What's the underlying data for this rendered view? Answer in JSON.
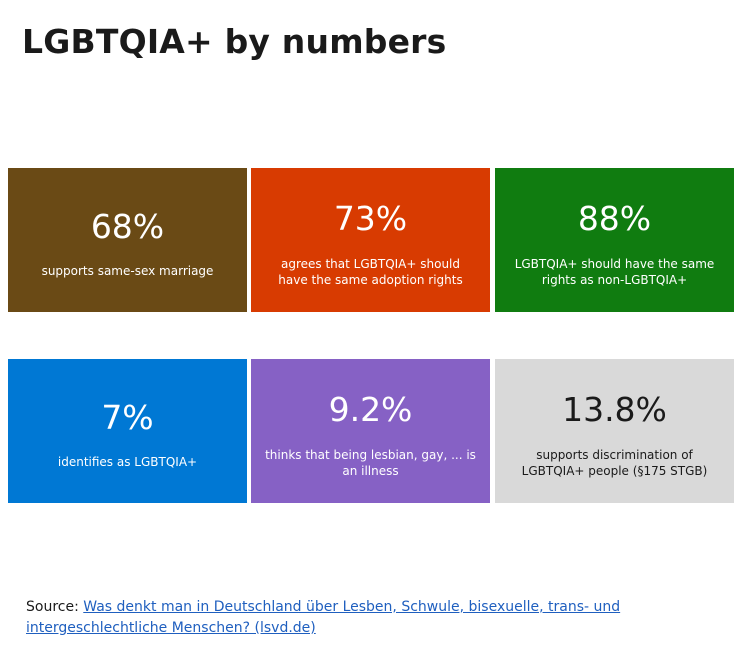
{
  "title": "LGBTQIA+  by numbers",
  "tiles": [
    {
      "value": "68%",
      "description": "supports same-sex marriage",
      "color": "#6a4a15"
    },
    {
      "value": "73%",
      "description": "agrees that  LGBTQIA+  should have the  same adoption rights",
      "color": "#d83b01"
    },
    {
      "value": "88%",
      "description": "LGBTQIA+  should have the same rights as non-LGBTQIA+",
      "color": "#107c10"
    },
    {
      "value": "7%",
      "description": "identifies  as LGBTQIA+",
      "color": "#0078d4"
    },
    {
      "value": "9.2%",
      "description": "thinks  that  being lesbian, gay, ... is an illness",
      "color": "#8661c5"
    },
    {
      "value": "13.8%",
      "description": "supports discrimination  of LGBTQIA+ people (§175 STGB)",
      "color": "#d9d9d9"
    }
  ],
  "source": {
    "label": "Source: ",
    "link_text": "Was denkt  man in Deutschland  über  Lesben, Schwule, bisexuelle,  trans-  und intergeschlechtliche  Menschen?  (lsvd.de)"
  }
}
